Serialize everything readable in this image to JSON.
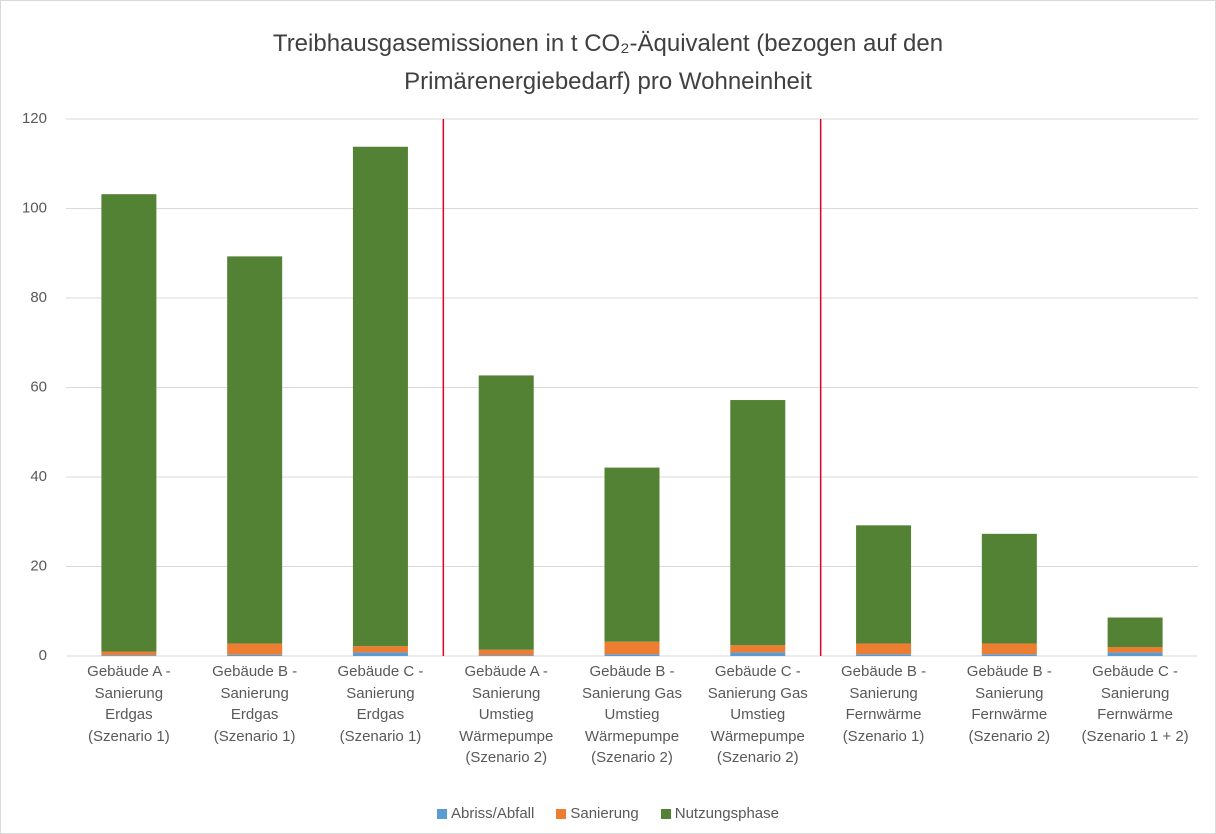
{
  "chart_data": {
    "type": "stacked_bar",
    "title": "Treibhausgasemissionen in t CO₂-Äquivalent (bezogen auf den Primärenergiebedarf)  pro Wohneinheit",
    "categories": [
      "Gebäude A - Sanierung Erdgas (Szenario 1)",
      "Gebäude B - Sanierung Erdgas (Szenario 1)",
      "Gebäude C - Sanierung Erdgas (Szenario 1)",
      "Gebäude A - Sanierung Umstieg Wärmepumpe (Szenario 2)",
      "Gebäude B - Sanierung Gas Umstieg Wärmepumpe (Szenario 2)",
      "Gebäude C - Sanierung Gas Umstieg Wärmepumpe (Szenario 2)",
      "Gebäude B - Sanierung Fernwärme (Szenario 1)",
      "Gebäude B - Sanierung Fernwärme (Szenario 2)",
      "Gebäude C - Sanierung Fernwärme (Szenario 1 + 2)"
    ],
    "series": [
      {
        "name": "Abriss/Abfall",
        "color": "#5b9bd5",
        "values": [
          0.2,
          0.3,
          0.8,
          0.2,
          0.4,
          0.8,
          0.4,
          0.4,
          0.8
        ]
      },
      {
        "name": "Sanierung",
        "color": "#ed7d31",
        "values": [
          0.8,
          2.5,
          1.4,
          1.2,
          2.8,
          1.6,
          2.4,
          2.4,
          1.2
        ]
      },
      {
        "name": "Nutzungsphase",
        "color": "#548235",
        "values": [
          102.2,
          86.5,
          111.6,
          61.3,
          38.9,
          54.8,
          26.4,
          24.5,
          6.6
        ]
      }
    ],
    "ylim": [
      0,
      120
    ],
    "yticks": [
      0,
      20,
      40,
      60,
      80,
      100,
      120
    ],
    "grid": true,
    "legend": "bottom"
  }
}
